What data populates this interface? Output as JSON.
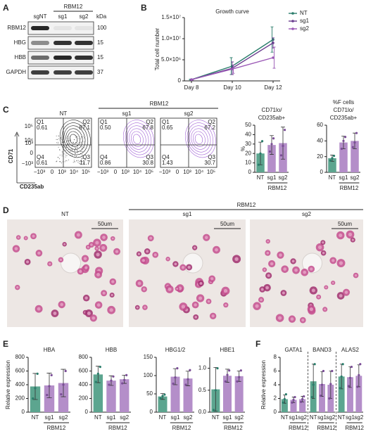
{
  "figure": {
    "panel_labels": [
      "A",
      "B",
      "C",
      "D",
      "E",
      "F"
    ]
  },
  "blot": {
    "lanes": [
      "sgNT",
      "sg1",
      "sg2"
    ],
    "group": "RBM12",
    "unit": "kDa",
    "rows": [
      {
        "protein": "RBM12",
        "kda": 100
      },
      {
        "protein": "HBG",
        "kda": 15
      },
      {
        "protein": "HBB",
        "kda": 15
      },
      {
        "protein": "GAPDH",
        "kda": 37
      }
    ]
  },
  "flow": {
    "group": "RBM12",
    "y_label": "CD71",
    "x_label": "CD235ab",
    "ticks": [
      "−10³",
      "0",
      "10³",
      "10⁴",
      "10⁵"
    ],
    "plots": [
      {
        "title": "NT",
        "quadrants": [
          {
            "name": "Q1",
            "value": "0.61"
          },
          {
            "name": "Q2",
            "value": "87.1"
          },
          {
            "name": "Q4",
            "value": "0.61"
          },
          {
            "name": "Q3",
            "value": "11.7"
          }
        ]
      },
      {
        "title": "sg1",
        "quadrants": [
          {
            "name": "Q1",
            "value": "0.50"
          },
          {
            "name": "Q2",
            "value": "67.8"
          },
          {
            "name": "Q4",
            "value": "0.86"
          },
          {
            "name": "Q3",
            "value": "30.8"
          }
        ]
      },
      {
        "title": "sg2",
        "quadrants": [
          {
            "name": "Q1",
            "value": "0.65"
          },
          {
            "name": "Q2",
            "value": "67.2"
          },
          {
            "name": "Q4",
            "value": "1.43"
          },
          {
            "name": "Q3",
            "value": "30.7"
          }
        ]
      }
    ]
  },
  "micrographs": {
    "group": "RBM12",
    "images": [
      {
        "title": "NT",
        "scale_bar": "50um"
      },
      {
        "title": "sg1",
        "scale_bar": "50um"
      },
      {
        "title": "sg2",
        "scale_bar": "50um"
      }
    ]
  },
  "chart_data": [
    {
      "type": "line",
      "title": "Growth curve",
      "ylabel": "Total cell number",
      "categories": [
        "Day 8",
        "Day 10",
        "Day 12"
      ],
      "legend": "right",
      "ylim": [
        0,
        15000000
      ],
      "yticks": [
        0,
        {
          "value": 5000000,
          "label": "5.0×10⁶"
        },
        {
          "value": 10000000,
          "label": "1.0×10⁷"
        },
        {
          "value": 15000000,
          "label": "1.5×10⁷"
        }
      ],
      "series": [
        {
          "name": "NT",
          "color": "#2a7d6b",
          "values": [
            300000,
            3500000,
            9800000
          ],
          "errors": [
            100000,
            2000000,
            3000000
          ]
        },
        {
          "name": "sg1",
          "color": "#6a3d8f",
          "values": [
            300000,
            3000000,
            9000000
          ],
          "errors": [
            100000,
            1500000,
            1200000
          ]
        },
        {
          "name": "sg2",
          "color": "#9b59b6",
          "values": [
            300000,
            2800000,
            5500000
          ],
          "errors": [
            100000,
            1000000,
            2500000
          ]
        }
      ]
    },
    {
      "type": "bar",
      "title": [
        "CD71lo/",
        "CD235ab+"
      ],
      "ylabel": "%",
      "categories": [
        "NT",
        "sg1",
        "sg2"
      ],
      "group_label": "RBM12",
      "values": [
        20,
        29,
        31
      ],
      "errors": [
        12,
        10,
        17
      ],
      "points": [
        [
          8,
          20,
          33
        ],
        [
          22,
          30,
          36
        ],
        [
          18,
          28,
          45
        ]
      ],
      "colors": [
        "#5ca58f",
        "#b48ec9",
        "#b48ec9"
      ],
      "point_colors": [
        "#2a7d6b",
        "#7a4d96",
        "#7a4d96"
      ],
      "ylim": [
        0,
        50
      ],
      "yticks": [
        0,
        10,
        20,
        30,
        40,
        50
      ]
    },
    {
      "type": "bar",
      "title": [
        "%F cells",
        "CD71lo/",
        "CD235ab+"
      ],
      "categories": [
        "NT",
        "sg1",
        "sg2"
      ],
      "group_label": "RBM12",
      "values": [
        18,
        38,
        40
      ],
      "errors": [
        4,
        8,
        10
      ],
      "points": [
        [
          15,
          18,
          21
        ],
        [
          30,
          40,
          45
        ],
        [
          32,
          38,
          50
        ]
      ],
      "colors": [
        "#5ca58f",
        "#b48ec9",
        "#b48ec9"
      ],
      "point_colors": [
        "#2a7d6b",
        "#7a4d96",
        "#7a4d96"
      ],
      "ylim": [
        0,
        60
      ],
      "yticks": [
        0,
        20,
        40,
        60
      ]
    },
    {
      "type": "bar",
      "title": [
        "HBA"
      ],
      "ylabel": "Relative expression",
      "categories": [
        "NT",
        "sg1",
        "sg2"
      ],
      "group_label": "RBM12",
      "values": [
        375,
        390,
        425
      ],
      "errors": [
        190,
        180,
        200
      ],
      "points": [
        [
          200,
          350,
          560
        ],
        [
          250,
          380,
          540
        ],
        [
          260,
          400,
          600
        ]
      ],
      "colors": [
        "#5ca58f",
        "#b48ec9",
        "#b48ec9"
      ],
      "point_colors": [
        "#2a7d6b",
        "#7a4d96",
        "#7a4d96"
      ],
      "ylim": [
        0,
        800
      ],
      "yticks": [
        0,
        200,
        400,
        600,
        800
      ]
    },
    {
      "type": "bar",
      "title": [
        "HBB"
      ],
      "categories": [
        "NT",
        "sg1",
        "sg2"
      ],
      "group_label": "RBM12",
      "values": [
        550,
        460,
        480
      ],
      "errors": [
        120,
        70,
        60
      ],
      "points": [
        [
          440,
          560,
          660
        ],
        [
          400,
          460,
          520
        ],
        [
          420,
          470,
          540
        ]
      ],
      "colors": [
        "#5ca58f",
        "#b48ec9",
        "#b48ec9"
      ],
      "point_colors": [
        "#2a7d6b",
        "#7a4d96",
        "#7a4d96"
      ],
      "ylim": [
        0,
        800
      ],
      "yticks": [
        0,
        200,
        400,
        600,
        800
      ]
    },
    {
      "type": "bar",
      "title": [
        "HBG1/2"
      ],
      "categories": [
        "NT",
        "sg1",
        "sg2"
      ],
      "group_label": "RBM12",
      "values": [
        43,
        97,
        92
      ],
      "errors": [
        8,
        22,
        20
      ],
      "points": [
        [
          38,
          44,
          48
        ],
        [
          78,
          95,
          120
        ],
        [
          75,
          90,
          115
        ]
      ],
      "colors": [
        "#5ca58f",
        "#b48ec9",
        "#b48ec9"
      ],
      "point_colors": [
        "#2a7d6b",
        "#7a4d96",
        "#7a4d96"
      ],
      "ylim": [
        0,
        150
      ],
      "yticks": [
        0,
        50,
        100,
        150
      ]
    },
    {
      "type": "bar",
      "title": [
        "HBE1"
      ],
      "categories": [
        "NT",
        "sg1",
        "sg2"
      ],
      "group_label": "RBM12",
      "values": [
        0.52,
        0.83,
        0.82
      ],
      "errors": [
        0.5,
        0.15,
        0.12
      ],
      "points": [
        [
          0.05,
          0.5,
          1.0
        ],
        [
          0.7,
          0.85,
          0.95
        ],
        [
          0.7,
          0.8,
          0.95
        ]
      ],
      "colors": [
        "#5ca58f",
        "#b48ec9",
        "#b48ec9"
      ],
      "point_colors": [
        "#2a7d6b",
        "#7a4d96",
        "#7a4d96"
      ],
      "ylim": [
        0,
        1.25
      ],
      "yticks": [
        {
          "value": 0,
          "label": "0.0"
        },
        {
          "value": 0.5,
          "label": "0.5"
        },
        {
          "value": 1,
          "label": "1.0"
        }
      ]
    },
    {
      "type": "bar",
      "title": [
        "GATA1"
      ],
      "ylabel": "Relative expression",
      "categories": [
        "NT",
        "sg1",
        "sg2"
      ],
      "group_label": "RBM12",
      "values": [
        1.9,
        1.8,
        1.9
      ],
      "errors": [
        0.6,
        0.4,
        0.4
      ],
      "points": [
        [
          1.4,
          1.9,
          2.6
        ],
        [
          1.4,
          1.8,
          2.2
        ],
        [
          1.5,
          1.9,
          2.3
        ]
      ],
      "colors": [
        "#5ca58f",
        "#b48ec9",
        "#b48ec9"
      ],
      "point_colors": [
        "#2a7d6b",
        "#7a4d96",
        "#7a4d96"
      ],
      "ylim": [
        0,
        8
      ],
      "yticks": [
        0,
        2,
        4,
        6,
        8
      ]
    },
    {
      "type": "bar",
      "title": [
        "BAND3"
      ],
      "categories": [
        "NT",
        "sg1",
        "sg2"
      ],
      "group_label": "RBM12",
      "values": [
        4.5,
        4.1,
        4.0
      ],
      "errors": [
        2.5,
        1.8,
        2.0
      ],
      "points": [
        [
          2.2,
          4.0,
          7.0
        ],
        [
          2.4,
          4.0,
          6.0
        ],
        [
          2.0,
          4.1,
          6.0
        ]
      ],
      "colors": [
        "#5ca58f",
        "#b48ec9",
        "#b48ec9"
      ],
      "point_colors": [
        "#2a7d6b",
        "#7a4d96",
        "#7a4d96"
      ],
      "ylim": [
        0,
        8
      ]
    },
    {
      "type": "bar",
      "title": [
        "ALAS2"
      ],
      "categories": [
        "NT",
        "sg1",
        "sg2"
      ],
      "group_label": "RBM12",
      "values": [
        5.2,
        5.1,
        5.3
      ],
      "errors": [
        1.8,
        1.5,
        1.6
      ],
      "points": [
        [
          3.5,
          5.2,
          7.0
        ],
        [
          3.8,
          5.0,
          6.6
        ],
        [
          3.7,
          5.4,
          7.0
        ]
      ],
      "colors": [
        "#5ca58f",
        "#b48ec9",
        "#b48ec9"
      ],
      "point_colors": [
        "#2a7d6b",
        "#7a4d96",
        "#7a4d96"
      ],
      "ylim": [
        0,
        8
      ]
    }
  ]
}
